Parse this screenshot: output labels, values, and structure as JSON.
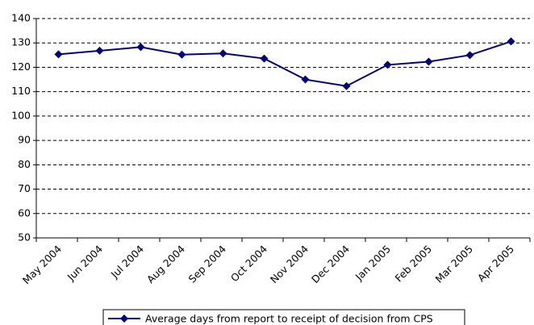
{
  "chart_data": {
    "type": "line",
    "categories": [
      "May 2004",
      "Jun 2004",
      "Jul 2004",
      "Aug 2004",
      "Sep 2004",
      "Oct 2004",
      "Nov 2004",
      "Dec 2004",
      "Jan 2005",
      "Feb 2005",
      "Mar 2005",
      "Apr 2005"
    ],
    "series": [
      {
        "name": "Average days from report to receipt of decision from CPS",
        "color": "#000080",
        "values": [
          125.3,
          126.8,
          128.3,
          125.2,
          125.7,
          123.6,
          115,
          112.3,
          121,
          122.3,
          125,
          130.6
        ]
      }
    ],
    "ylim": [
      50,
      140
    ],
    "yticks": [
      50,
      60,
      70,
      80,
      90,
      100,
      110,
      120,
      130,
      140
    ],
    "grid": true,
    "legend": "bottom"
  }
}
